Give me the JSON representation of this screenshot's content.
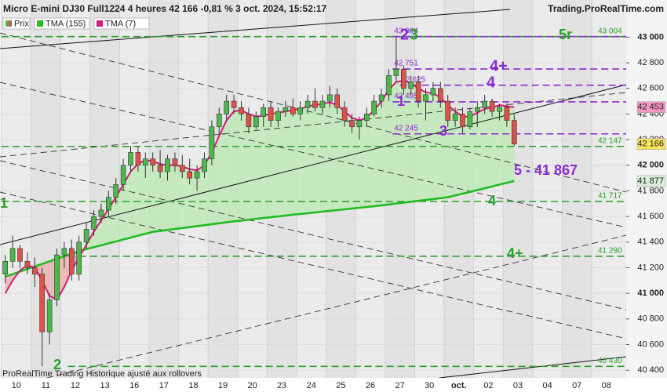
{
  "header": {
    "title": "Micro E-mini DJ30 Full1224 4 heures 42 166 -0,81 % 3 oct. 2024, 15:52:17",
    "source": "Trading.ProRealTime.com",
    "footer": "ProRealTime Trading  Historique ajusté aux rollovers"
  },
  "chart_data": {
    "type": "candlestick",
    "price_name": "Prix",
    "up_color": "#4cb84c",
    "down_color": "#e0504a",
    "open": [
      41150,
      41250,
      41350,
      41250,
      41200,
      41150,
      40700,
      40950,
      41300,
      41350,
      41150,
      41400,
      41500,
      41600,
      41650,
      41750,
      41850,
      42000,
      42100,
      42000,
      42050,
      42000,
      41950,
      42050,
      42000,
      41950,
      41900,
      41950,
      42050,
      42300,
      42400,
      42500,
      42450,
      42400,
      42300,
      42380,
      42450,
      42350,
      42420,
      42450,
      42400,
      42450,
      42500,
      42450,
      42500,
      42550,
      42450,
      42350,
      42300,
      42350,
      42400,
      42500,
      42550,
      42700,
      42750,
      42600,
      42650,
      42500,
      42550,
      42600,
      42500,
      42350,
      42400,
      42300,
      42420,
      42450,
      42500,
      42420,
      42453,
      42350
    ],
    "high": [
      41300,
      41450,
      41380,
      41320,
      41280,
      41200,
      41000,
      41350,
      41400,
      41420,
      41450,
      41550,
      41650,
      41700,
      41800,
      41900,
      42050,
      42150,
      42150,
      42100,
      42100,
      42120,
      42080,
      42100,
      42080,
      42050,
      42000,
      42100,
      42350,
      42450,
      42550,
      42550,
      42500,
      42450,
      42420,
      42480,
      42500,
      42450,
      42500,
      42520,
      42500,
      42550,
      42600,
      42550,
      42620,
      42600,
      42500,
      42400,
      42380,
      42450,
      42550,
      42600,
      42750,
      43004,
      42780,
      42700,
      42700,
      42600,
      42650,
      42650,
      42550,
      42450,
      42450,
      42450,
      42500,
      42550,
      42520,
      42480,
      42480,
      42400
    ],
    "low": [
      41080,
      41200,
      41200,
      41150,
      41050,
      40430,
      40600,
      40900,
      41200,
      41100,
      41100,
      41350,
      41450,
      41550,
      41600,
      41700,
      41800,
      41950,
      41950,
      41900,
      41950,
      41900,
      41880,
      41950,
      41900,
      41850,
      41800,
      41900,
      42000,
      42250,
      42350,
      42400,
      42350,
      42250,
      42280,
      42300,
      42300,
      42300,
      42380,
      42380,
      42350,
      42400,
      42420,
      42400,
      42450,
      42400,
      42300,
      42250,
      42200,
      42300,
      42380,
      42450,
      42500,
      42650,
      42550,
      42550,
      42450,
      42350,
      42500,
      42450,
      42300,
      42300,
      42250,
      42280,
      42300,
      42400,
      42380,
      42350,
      42300,
      42150
    ],
    "close": [
      41250,
      41350,
      41250,
      41200,
      41150,
      40700,
      40950,
      41300,
      41350,
      41150,
      41400,
      41500,
      41600,
      41650,
      41750,
      41850,
      42000,
      42100,
      42000,
      42050,
      42000,
      41950,
      42050,
      42000,
      41950,
      41900,
      41950,
      42050,
      42300,
      42400,
      42500,
      42450,
      42400,
      42300,
      42380,
      42450,
      42350,
      42420,
      42450,
      42400,
      42450,
      42500,
      42450,
      42500,
      42550,
      42450,
      42350,
      42300,
      42350,
      42400,
      42500,
      42550,
      42700,
      42750,
      42600,
      42650,
      42500,
      42550,
      42600,
      42500,
      42350,
      42400,
      42300,
      42420,
      42450,
      42500,
      42420,
      42453,
      42350,
      42166
    ],
    "series": [
      {
        "name": "TMA (155)",
        "color": "#22bb22",
        "values": [
          41130,
          41150,
          41170,
          41190,
          41210,
          41230,
          41250,
          41270,
          41290,
          41310,
          41330,
          41345,
          41360,
          41375,
          41390,
          41405,
          41420,
          41435,
          41450,
          41465,
          41480,
          41487,
          41495,
          41502,
          41510,
          41517,
          41525,
          41532,
          41540,
          41547,
          41555,
          41562,
          41568,
          41575,
          41581,
          41588,
          41594,
          41601,
          41607,
          41614,
          41620,
          41626,
          41632,
          41638,
          41644,
          41650,
          41656,
          41662,
          41668,
          41674,
          41680,
          41687,
          41694,
          41701,
          41708,
          41715,
          41722,
          41729,
          41736,
          41743,
          41750,
          41764,
          41778,
          41792,
          41806,
          41820,
          41834,
          41849,
          41863,
          41877
        ]
      },
      {
        "name": "TMA (7)",
        "color": "#d81b74",
        "values": [
          41000,
          41100,
          41180,
          41220,
          41200,
          41100,
          40980,
          40950,
          41050,
          41180,
          41280,
          41380,
          41480,
          41570,
          41660,
          41750,
          41850,
          41950,
          42010,
          42040,
          42030,
          42010,
          42000,
          42000,
          41990,
          41970,
          41960,
          42000,
          42100,
          42230,
          42350,
          42420,
          42430,
          42400,
          42380,
          42390,
          42400,
          42410,
          42420,
          42430,
          42440,
          42460,
          42470,
          42480,
          42490,
          42470,
          42420,
          42370,
          42350,
          42370,
          42430,
          42500,
          42590,
          42650,
          42660,
          42640,
          42600,
          42570,
          42560,
          42530,
          42470,
          42420,
          42380,
          42380,
          42410,
          42440,
          42450,
          42470,
          42460,
          42453
        ]
      }
    ],
    "ylim": [
      40340,
      43290
    ],
    "yticks": [
      {
        "value": 40400,
        "label": "40 400"
      },
      {
        "value": 40600,
        "label": "40 600"
      },
      {
        "value": 40800,
        "label": "40 800"
      },
      {
        "value": 41000,
        "label": "41 000"
      },
      {
        "value": 41200,
        "label": "41 200"
      },
      {
        "value": 41400,
        "label": "41 400"
      },
      {
        "value": 41600,
        "label": "41 600"
      },
      {
        "value": 41800,
        "label": "41 800"
      },
      {
        "value": 42000,
        "label": "42 000"
      },
      {
        "value": 42200,
        "label": "42 200"
      },
      {
        "value": 42400,
        "label": "42 400"
      },
      {
        "value": 42600,
        "label": "42 600"
      },
      {
        "value": 42800,
        "label": "42 800"
      },
      {
        "value": 43000,
        "label": "43 000"
      }
    ],
    "xticks": [
      {
        "value": 2,
        "label": "10"
      },
      {
        "value": 6,
        "label": "11"
      },
      {
        "value": 10,
        "label": "12"
      },
      {
        "value": 14,
        "label": "13"
      },
      {
        "value": 18,
        "label": "16"
      },
      {
        "value": 22,
        "label": "17"
      },
      {
        "value": 26,
        "label": "18"
      },
      {
        "value": 30,
        "label": "19"
      },
      {
        "value": 34,
        "label": "20"
      },
      {
        "value": 38,
        "label": "23"
      },
      {
        "value": 42,
        "label": "24"
      },
      {
        "value": 46,
        "label": "25"
      },
      {
        "value": 50,
        "label": "26"
      },
      {
        "value": 54,
        "label": "27"
      },
      {
        "value": 58,
        "label": "30"
      },
      {
        "value": 62,
        "label": "oct."
      },
      {
        "value": 66,
        "label": "02"
      },
      {
        "value": 70,
        "label": "03"
      },
      {
        "value": 74,
        "label": "04"
      },
      {
        "value": 78,
        "label": "07"
      },
      {
        "value": 82,
        "label": "08"
      }
    ],
    "grid": true,
    "levels": [
      {
        "value": 43004,
        "label": "43 004",
        "color": "#2e9e2e",
        "from": 0,
        "side": "right"
      },
      {
        "value": 42147,
        "label": "42 147",
        "color": "#2e9e2e",
        "from": 0,
        "side": "right"
      },
      {
        "value": 41717,
        "label": "41 717",
        "color": "#2e9e2e",
        "from": 0,
        "side": "right"
      },
      {
        "value": 41290,
        "label": "41 290",
        "color": "#2e9e2e",
        "from": 9,
        "side": "right"
      },
      {
        "value": 40430,
        "label": "40 430",
        "color": "#2e9e2e",
        "from": 9,
        "side": "right"
      },
      {
        "value": 43004,
        "label": "43 004",
        "color": "#8a2ad0",
        "from": 53,
        "side": "left"
      },
      {
        "value": 42751,
        "label": "42 751",
        "color": "#8a2ad0",
        "from": 53,
        "side": "left"
      },
      {
        "value": 42625,
        "label": "42 625",
        "color": "#8a2ad0",
        "from": 54,
        "side": "left"
      },
      {
        "value": 42495,
        "label": "42 495",
        "color": "#8a2ad0",
        "from": 53,
        "side": "left"
      },
      {
        "value": 42245,
        "label": "42 245",
        "color": "#8a2ad0",
        "from": 53,
        "side": "left"
      }
    ],
    "annotations": [
      {
        "text": "2",
        "color": "#8a2ad0"
      },
      {
        "text": "3",
        "color": "#2e9e2e"
      },
      {
        "text": "5r",
        "color": "#2e9e2e"
      },
      {
        "text": "4+",
        "color": "#8a2ad0"
      },
      {
        "text": "4",
        "color": "#8a2ad0"
      },
      {
        "text": "1",
        "color": "#8a2ad0"
      },
      {
        "text": "3",
        "color": "#8a2ad0"
      },
      {
        "text": "5 - 41 867",
        "color": "#8a2ad0"
      },
      {
        "text": "4",
        "color": "#2e9e2e"
      },
      {
        "text": "4+",
        "color": "#2e9e2e"
      },
      {
        "text": "1",
        "color": "#2e9e2e"
      },
      {
        "text": "2",
        "color": "#2e9e2e"
      }
    ],
    "price_tags": [
      {
        "value": 42453,
        "label": "42 453",
        "color": "#f29ac4"
      },
      {
        "value": 42166,
        "label": "42 166",
        "color": "#f5e35a"
      },
      {
        "value": 41877,
        "label": "41 877",
        "color": "#d7efd7"
      }
    ]
  }
}
